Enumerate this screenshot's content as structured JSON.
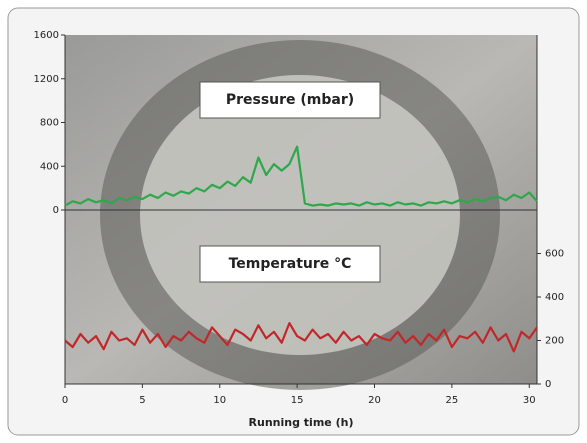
{
  "chart_data": [
    {
      "type": "line",
      "title": "Pressure (mbar)",
      "x": [
        0,
        0.5,
        1,
        1.5,
        2,
        2.5,
        3,
        3.5,
        4,
        4.5,
        5,
        5.5,
        6,
        6.5,
        7,
        7.5,
        8,
        8.5,
        9,
        9.5,
        10,
        10.5,
        11,
        11.5,
        12,
        12.5,
        13,
        13.5,
        14,
        14.5,
        15,
        15.5,
        16,
        16.5,
        17,
        17.5,
        18,
        18.5,
        19,
        19.5,
        20,
        20.5,
        21,
        21.5,
        22,
        22.5,
        23,
        23.5,
        24,
        24.5,
        25,
        25.5,
        26,
        26.5,
        27,
        27.5,
        28,
        28.5,
        29,
        29.5,
        30,
        30.5
      ],
      "xlim": [
        0,
        30.5
      ],
      "ylim": [
        0,
        1600
      ],
      "yticks": [
        0,
        400,
        800,
        1200,
        1600
      ],
      "series": [
        {
          "name": "Pressure (mbar)",
          "color": "#2ea84a",
          "values": [
            40,
            80,
            60,
            100,
            70,
            90,
            60,
            110,
            90,
            120,
            100,
            140,
            110,
            160,
            130,
            170,
            150,
            200,
            170,
            230,
            200,
            260,
            220,
            300,
            250,
            480,
            320,
            420,
            360,
            420,
            580,
            60,
            40,
            50,
            40,
            60,
            50,
            60,
            40,
            70,
            50,
            60,
            40,
            70,
            50,
            60,
            40,
            70,
            60,
            80,
            60,
            90,
            70,
            100,
            80,
            110,
            120,
            90,
            140,
            110,
            160,
            80
          ]
        }
      ]
    },
    {
      "type": "line",
      "title": "Temperature °C",
      "xlabel": "Running time (h)",
      "x": [
        0,
        0.5,
        1,
        1.5,
        2,
        2.5,
        3,
        3.5,
        4,
        4.5,
        5,
        5.5,
        6,
        6.5,
        7,
        7.5,
        8,
        8.5,
        9,
        9.5,
        10,
        10.5,
        11,
        11.5,
        12,
        12.5,
        13,
        13.5,
        14,
        14.5,
        15,
        15.5,
        16,
        16.5,
        17,
        17.5,
        18,
        18.5,
        19,
        19.5,
        20,
        20.5,
        21,
        21.5,
        22,
        22.5,
        23,
        23.5,
        24,
        24.5,
        25,
        25.5,
        26,
        26.5,
        27,
        27.5,
        28,
        28.5,
        29,
        29.5,
        30,
        30.5
      ],
      "xlim": [
        0,
        30.5
      ],
      "xticks": [
        0,
        5,
        10,
        15,
        20,
        25,
        30
      ],
      "y2lim": [
        0,
        800
      ],
      "y2ticks": [
        0,
        200,
        400,
        600
      ],
      "series": [
        {
          "name": "Temperature °C",
          "color": "#c0282a",
          "axis": "y2",
          "values": [
            200,
            170,
            230,
            190,
            220,
            160,
            240,
            200,
            210,
            180,
            250,
            190,
            230,
            170,
            220,
            200,
            240,
            210,
            190,
            260,
            220,
            180,
            250,
            230,
            200,
            270,
            210,
            240,
            190,
            280,
            220,
            200,
            250,
            210,
            230,
            190,
            240,
            200,
            220,
            180,
            230,
            210,
            200,
            240,
            190,
            220,
            180,
            230,
            200,
            250,
            170,
            220,
            210,
            240,
            190,
            260,
            200,
            230,
            150,
            240,
            210,
            260
          ]
        }
      ]
    }
  ]
}
